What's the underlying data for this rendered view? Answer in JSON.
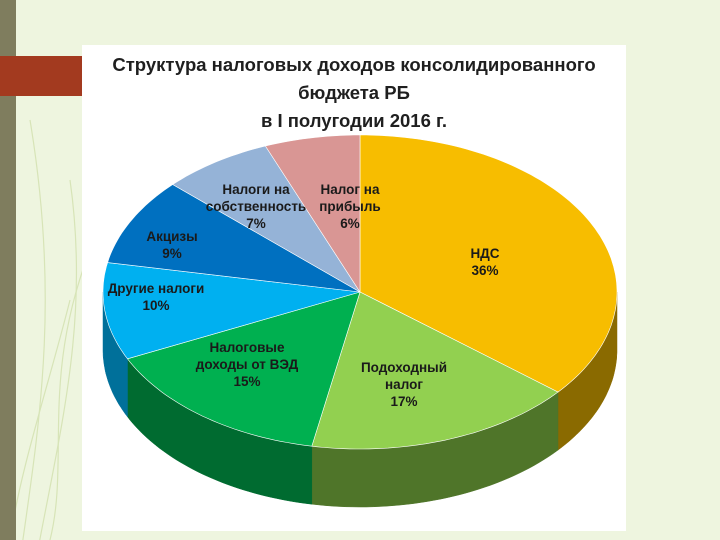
{
  "chart_data": {
    "type": "pie",
    "title_lines": [
      "Структура налоговых доходов консолидированного",
      "бюджета РБ",
      "в I полугодии 2016 г."
    ],
    "slices": [
      {
        "label_lines": [
          "НДС"
        ],
        "value": 36,
        "value_text": "36%",
        "color": "#f7bd00",
        "side_color": "#8a6a00"
      },
      {
        "label_lines": [
          "Подоходный",
          "налог"
        ],
        "value": 17,
        "value_text": "17%",
        "color": "#92d050",
        "side_color": "#4f7529"
      },
      {
        "label_lines": [
          "Налоговые",
          "доходы от ВЭД"
        ],
        "value": 15,
        "value_text": "15%",
        "color": "#00b050",
        "side_color": "#006b30"
      },
      {
        "label_lines": [
          "Другие налоги"
        ],
        "value": 10,
        "value_text": "10%",
        "color": "#00b0f0",
        "side_color": "#00709a"
      },
      {
        "label_lines": [
          "Акцизы"
        ],
        "value": 9,
        "value_text": "9%",
        "color": "#0070c0",
        "side_color": "#004a80"
      },
      {
        "label_lines": [
          "Налоги на",
          "собственность"
        ],
        "value": 7,
        "value_text": "7%",
        "color": "#95b3d7",
        "side_color": "#5e7594"
      },
      {
        "label_lines": [
          "Налог на",
          "прибыль"
        ],
        "value": 6,
        "value_text": "6%",
        "color": "#d99694",
        "side_color": "#8f5b59"
      }
    ]
  }
}
